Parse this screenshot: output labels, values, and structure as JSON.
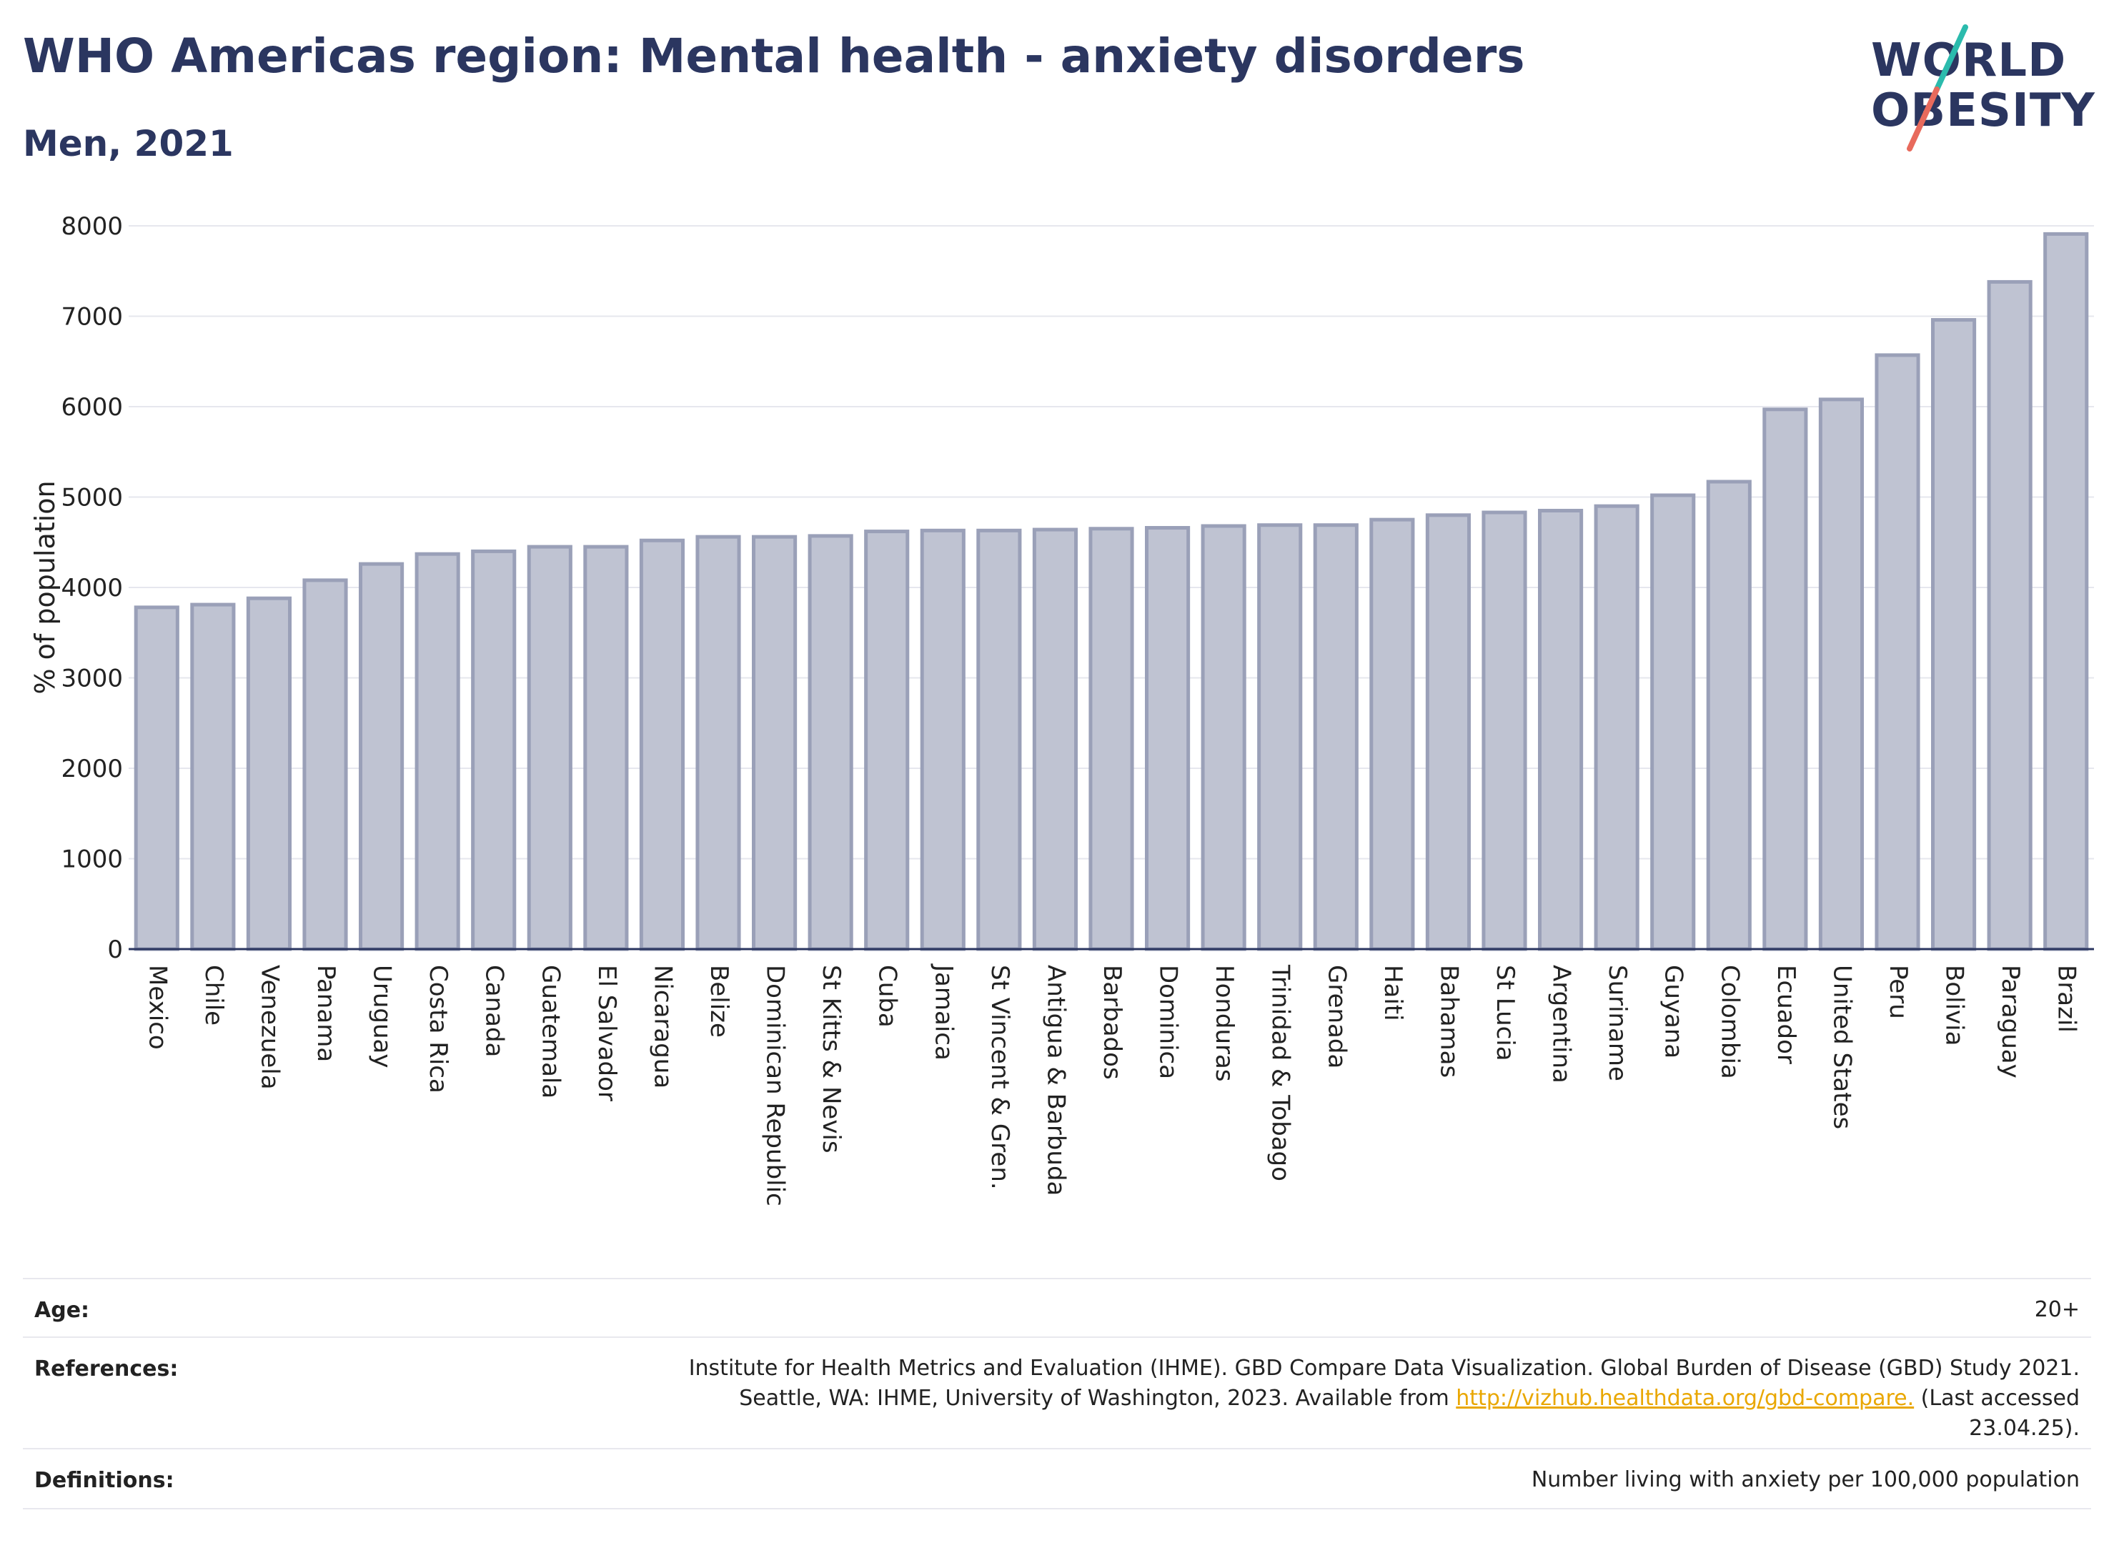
{
  "header": {
    "title": "WHO Americas region: Mental health - anxiety disorders",
    "subtitle": "Men, 2021"
  },
  "logo": {
    "line1": "WORLD",
    "line2": "OBESITY",
    "colors": {
      "text": "#2b3660",
      "slash_top": "#2bbbad",
      "slash_bottom": "#e86a5c"
    }
  },
  "chart_data": {
    "type": "bar",
    "ylabel": "% of population",
    "xlabel": "",
    "ylim": [
      0,
      8000
    ],
    "yticks": [
      0,
      1000,
      2000,
      3000,
      4000,
      5000,
      6000,
      7000,
      8000
    ],
    "grid": true,
    "bar_color": "#bfc3d2",
    "bar_edge_color": "#9aa0b8",
    "categories": [
      "Mexico",
      "Chile",
      "Venezuela",
      "Panama",
      "Uruguay",
      "Costa Rica",
      "Canada",
      "Guatemala",
      "El Salvador",
      "Nicaragua",
      "Belize",
      "Dominican Republic",
      "St Kitts & Nevis",
      "Cuba",
      "Jamaica",
      "St Vincent & Gren.",
      "Antigua & Barbuda",
      "Barbados",
      "Dominica",
      "Honduras",
      "Trinidad & Tobago",
      "Grenada",
      "Haiti",
      "Bahamas",
      "St Lucia",
      "Argentina",
      "Suriname",
      "Guyana",
      "Colombia",
      "Ecuador",
      "United States",
      "Peru",
      "Bolivia",
      "Paraguay",
      "Brazil"
    ],
    "values": [
      3780,
      3810,
      3880,
      4080,
      4260,
      4370,
      4400,
      4450,
      4450,
      4520,
      4560,
      4560,
      4570,
      4620,
      4630,
      4630,
      4640,
      4650,
      4660,
      4680,
      4690,
      4690,
      4750,
      4800,
      4830,
      4850,
      4900,
      5020,
      5170,
      5970,
      6080,
      6570,
      6960,
      7380,
      7910
    ]
  },
  "footer": {
    "age_label": "Age:",
    "age_value": "20+",
    "references_label": "References:",
    "references_line1": "Institute for Health Metrics and Evaluation (IHME). GBD Compare Data Visualization. Global Burden of Disease (GBD) Study 2021.",
    "references_line2_pre": "Seattle, WA: IHME, University of Washington, 2023. Available from ",
    "references_link": "http://vizhub.healthdata.org/gbd-compare.",
    "references_line2_post": " (Last accessed",
    "references_line3": "23.04.25).",
    "definitions_label": "Definitions:",
    "definitions_value": "Number living with anxiety per 100,000 population"
  }
}
